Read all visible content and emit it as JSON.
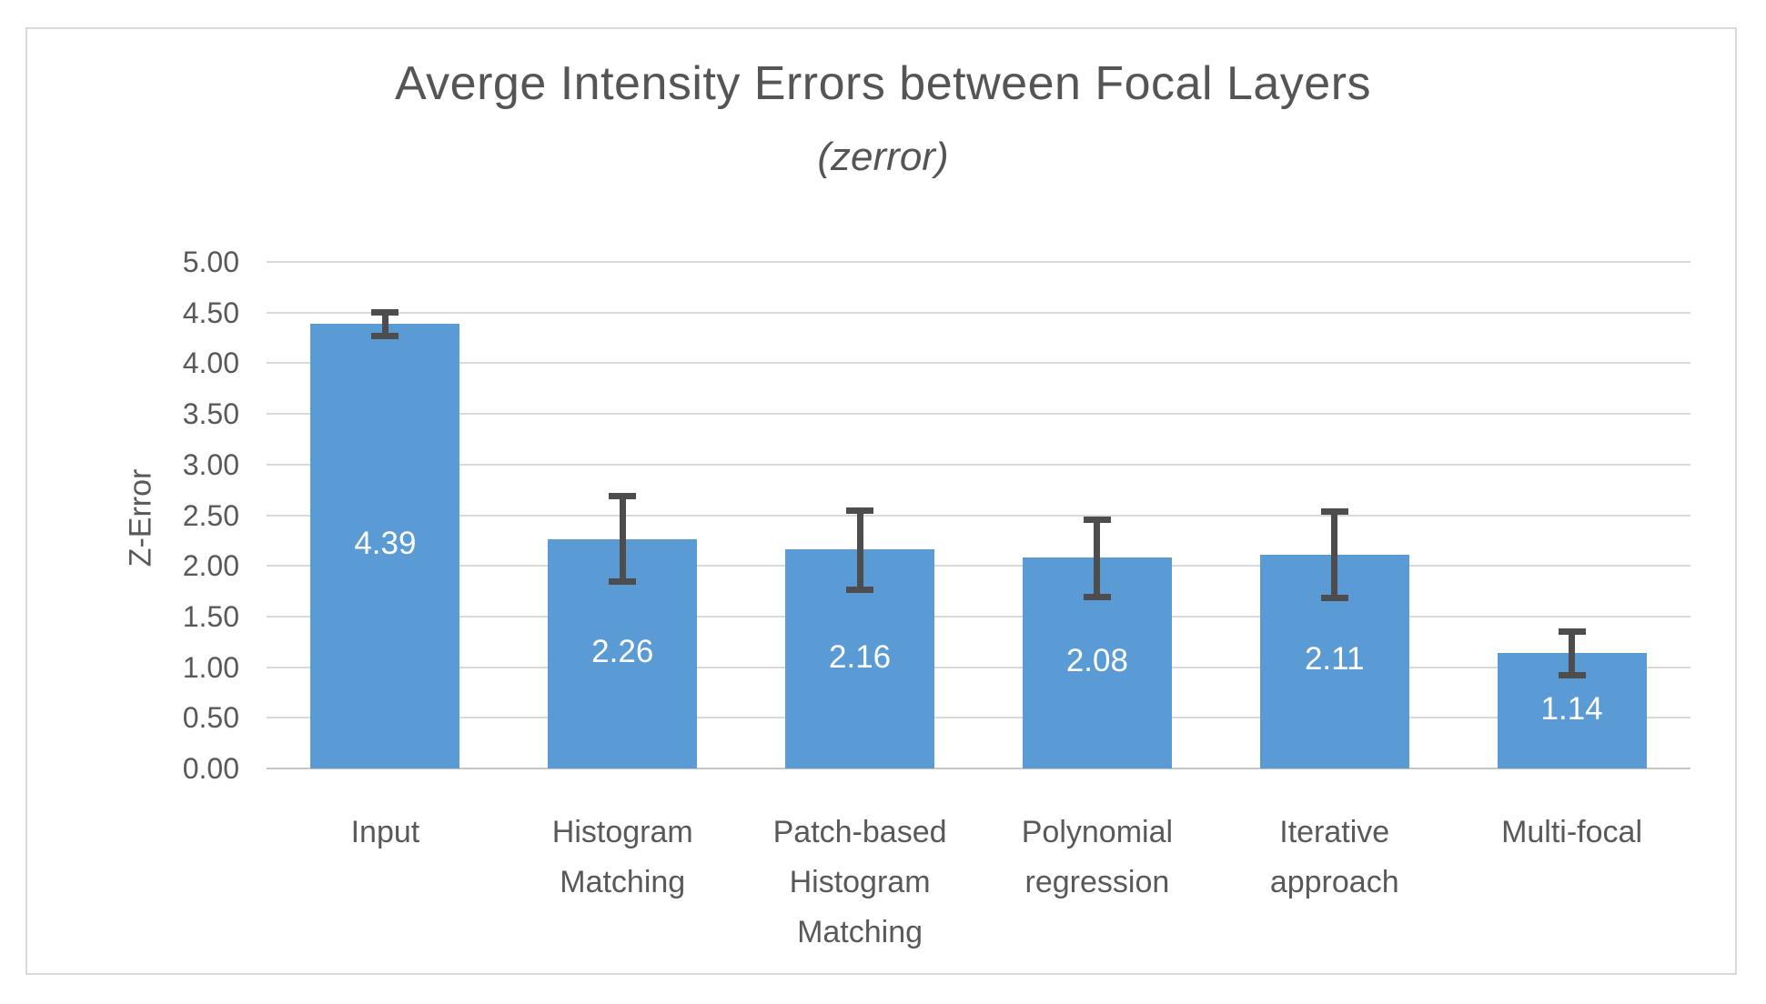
{
  "figure": {
    "title": "Averge Intensity Errors between Focal Layers",
    "subtitle": "(zerror)"
  },
  "chart_data": {
    "type": "bar",
    "title": "Averge Intensity Errors between Focal Layers",
    "subtitle": "(zerror)",
    "xlabel": "",
    "ylabel": "Z-Error",
    "ylim": [
      0,
      5
    ],
    "ytick_step": 0.5,
    "ytick_labels": [
      "0.00",
      "0.50",
      "1.00",
      "1.50",
      "2.00",
      "2.50",
      "3.00",
      "3.50",
      "4.00",
      "4.50",
      "5.00"
    ],
    "grid": true,
    "legend": false,
    "categories": [
      "Input",
      "Histogram Matching",
      "Patch-based Histogram Matching",
      "Polynomial regression",
      "Iterative approach",
      "Multi-focal"
    ],
    "values": [
      4.39,
      2.26,
      2.16,
      2.08,
      2.11,
      1.14
    ],
    "value_labels": [
      "4.39",
      "2.26",
      "2.16",
      "2.08",
      "2.11",
      "1.14"
    ],
    "error_bars": [
      {
        "high": 4.53,
        "low": 4.24
      },
      {
        "high": 2.72,
        "low": 1.81
      },
      {
        "high": 2.58,
        "low": 1.73
      },
      {
        "high": 2.49,
        "low": 1.66
      },
      {
        "high": 2.57,
        "low": 1.65
      },
      {
        "high": 1.38,
        "low": 0.89
      }
    ],
    "colors": {
      "bar": "#5b9bd5",
      "error_bar": "#4d4d4d",
      "gridline": "#d9d9d9",
      "axis_line": "#c6c6c6",
      "text": "#595959",
      "title_text": "#555555",
      "bar_label_text": "#ffffff",
      "frame_border": "#d9d9d9",
      "background": "#ffffff"
    }
  }
}
